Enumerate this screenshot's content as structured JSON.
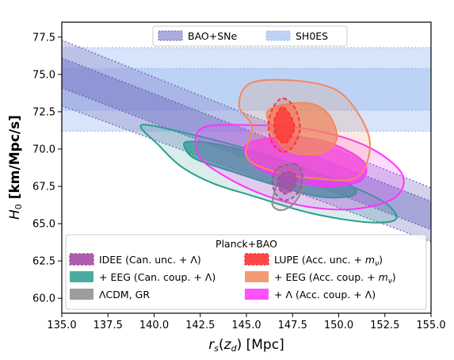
{
  "chart_data": {
    "type": "contour",
    "xlabel": "r_s(z_d)  [Mpc]",
    "ylabel": "H_0  [km/Mpc/s]",
    "xlim": [
      135.0,
      155.0
    ],
    "ylim": [
      59.0,
      78.5
    ],
    "xticks": [
      "135.0",
      "137.5",
      "140.0",
      "142.5",
      "145.0",
      "147.5",
      "150.0",
      "152.5",
      "155.0"
    ],
    "yticks": [
      "60.0",
      "62.5",
      "65.0",
      "67.5",
      "70.0",
      "72.5",
      "75.0",
      "77.5"
    ],
    "grid": false,
    "top_legend": {
      "placement": "top-center",
      "entries": [
        {
          "label": "BAO+SNe",
          "color": "#8e8ed0"
        },
        {
          "label": "SH0ES",
          "color": "#a8c4f2"
        }
      ]
    },
    "bottom_legend": {
      "placement": "lower-center",
      "title": "Planck+BAO",
      "entries": [
        {
          "label": "IDEE (Can. unc. + Λ)",
          "color": "#a64ca6"
        },
        {
          "label": "LUPE (Acc. unc. + m_ν)",
          "color": "#ff3333"
        },
        {
          "label": "+ EEG (Can. coup. + Λ)",
          "color": "#2a9d8f"
        },
        {
          "label": "+ EEG (Acc. coup. + m_ν)",
          "color": "#f08a5d"
        },
        {
          "label": "ΛCDM, GR",
          "color": "#8c8c8c"
        },
        {
          "label": "+ Λ (Acc. coup. + Λ)",
          "color": "#ff33ff"
        }
      ]
    },
    "bands": [
      {
        "name": "SH0ES",
        "type": "horizontal",
        "inner": [
          72.6,
          75.4
        ],
        "outer": [
          71.2,
          76.8
        ],
        "color": "#a8c4f2"
      },
      {
        "name": "BAO+SNe",
        "type": "diagonal",
        "inner_upper": [
          [
            135.0,
            76.1
          ],
          [
            155.0,
            66.5
          ]
        ],
        "inner_lower": [
          [
            135.0,
            74.1
          ],
          [
            155.0,
            64.6
          ]
        ],
        "outer_upper": [
          [
            135.0,
            77.3
          ],
          [
            155.0,
            67.4
          ]
        ],
        "outer_lower": [
          [
            135.0,
            72.9
          ],
          [
            155.0,
            63.8
          ]
        ],
        "color": "#8e8ed0"
      }
    ],
    "contours": [
      {
        "name": "+ EEG (Can. coup. + Λ)",
        "color": "#2a9d8f",
        "level": "outer",
        "points": [
          [
            139.3,
            71.6
          ],
          [
            141.6,
            71.1
          ],
          [
            144.5,
            70.2
          ],
          [
            147.5,
            69.0
          ],
          [
            150.5,
            67.6
          ],
          [
            152.5,
            66.4
          ],
          [
            153.1,
            65.3
          ],
          [
            151.5,
            65.1
          ],
          [
            148.5,
            65.7
          ],
          [
            145.5,
            66.8
          ],
          [
            143.2,
            67.7
          ],
          [
            141.5,
            68.8
          ],
          [
            140.3,
            70.2
          ]
        ]
      },
      {
        "name": "+ EEG (Can. coup. + Λ)",
        "color": "#2a9d8f",
        "level": "inner",
        "points": [
          [
            141.8,
            70.5
          ],
          [
            143.5,
            70.3
          ],
          [
            145.8,
            69.6
          ],
          [
            148.3,
            68.6
          ],
          [
            150.6,
            67.6
          ],
          [
            150.8,
            66.9
          ],
          [
            149.0,
            66.8
          ],
          [
            146.5,
            67.6
          ],
          [
            144.2,
            68.5
          ],
          [
            142.3,
            69.3
          ],
          [
            141.7,
            70.0
          ]
        ]
      },
      {
        "name": "+ Λ (Acc. coup. + Λ)",
        "color": "#ff33ff",
        "level": "outer",
        "points": [
          [
            142.6,
            71.4
          ],
          [
            145.5,
            71.6
          ],
          [
            148.5,
            71.3
          ],
          [
            151.5,
            70.2
          ],
          [
            153.4,
            68.4
          ],
          [
            153.1,
            66.8
          ],
          [
            151.0,
            66.0
          ],
          [
            148.5,
            66.1
          ],
          [
            146.0,
            66.9
          ],
          [
            143.8,
            68.2
          ],
          [
            142.4,
            69.6
          ]
        ]
      },
      {
        "name": "+ Λ (Acc. coup. + Λ)",
        "color": "#ff33ff",
        "level": "inner",
        "points": [
          [
            145.0,
            70.3
          ],
          [
            147.0,
            70.8
          ],
          [
            149.3,
            70.5
          ],
          [
            151.3,
            69.2
          ],
          [
            151.2,
            67.9
          ],
          [
            149.3,
            67.5
          ],
          [
            147.2,
            68.0
          ],
          [
            145.4,
            68.9
          ]
        ]
      },
      {
        "name": "+ EEG (Acc. coup. + m_ν)",
        "color": "#f08a5d",
        "level": "outer",
        "points": [
          [
            145.2,
            74.4
          ],
          [
            147.5,
            74.6
          ],
          [
            149.8,
            74.0
          ],
          [
            151.1,
            72.3
          ],
          [
            151.7,
            70.2
          ],
          [
            151.0,
            68.1
          ],
          [
            149.0,
            68.0
          ],
          [
            146.5,
            68.5
          ],
          [
            145.0,
            69.5
          ],
          [
            145.3,
            71.5
          ],
          [
            144.6,
            72.9
          ]
        ]
      },
      {
        "name": "+ EEG (Acc. coup. + m_ν)",
        "color": "#f08a5d",
        "level": "inner",
        "points": [
          [
            146.3,
            72.7
          ],
          [
            148.2,
            73.1
          ],
          [
            149.4,
            72.4
          ],
          [
            149.9,
            70.7
          ],
          [
            149.0,
            69.7
          ],
          [
            147.4,
            69.8
          ],
          [
            146.6,
            70.7
          ],
          [
            146.2,
            71.8
          ]
        ]
      },
      {
        "name": "LUPE (Acc. unc. + m_ν)",
        "color": "#ff3333",
        "level": "outer",
        "points": [
          [
            147.0,
            73.4
          ],
          [
            147.6,
            72.8
          ],
          [
            147.9,
            71.5
          ],
          [
            147.6,
            70.3
          ],
          [
            147.0,
            69.8
          ],
          [
            146.4,
            70.4
          ],
          [
            146.2,
            71.7
          ],
          [
            146.5,
            72.9
          ]
        ]
      },
      {
        "name": "LUPE (Acc. unc. + m_ν)",
        "color": "#ff3333",
        "level": "inner",
        "points": [
          [
            147.0,
            72.8
          ],
          [
            147.4,
            72.2
          ],
          [
            147.6,
            71.4
          ],
          [
            147.3,
            70.6
          ],
          [
            147.0,
            70.4
          ],
          [
            146.6,
            70.9
          ],
          [
            146.5,
            71.8
          ],
          [
            146.7,
            72.5
          ]
        ]
      },
      {
        "name": "ΛCDM, GR",
        "color": "#8c8c8c",
        "level": "outer",
        "points": [
          [
            147.2,
            69.0
          ],
          [
            147.9,
            68.6
          ],
          [
            148.1,
            67.6
          ],
          [
            147.6,
            66.4
          ],
          [
            146.9,
            65.9
          ],
          [
            146.4,
            66.3
          ],
          [
            146.6,
            67.5
          ],
          [
            146.8,
            68.5
          ]
        ]
      },
      {
        "name": "IDEE (Can. unc. + Λ)",
        "color": "#a64ca6",
        "level": "outer",
        "points": [
          [
            147.6,
            69.0
          ],
          [
            148.0,
            68.4
          ],
          [
            147.9,
            67.3
          ],
          [
            147.3,
            66.6
          ],
          [
            146.7,
            66.8
          ],
          [
            146.4,
            67.8
          ],
          [
            146.7,
            68.7
          ]
        ]
      },
      {
        "name": "IDEE (Can. unc. + Λ)",
        "color": "#a64ca6",
        "level": "inner",
        "points": [
          [
            147.5,
            68.4
          ],
          [
            147.7,
            67.9
          ],
          [
            147.5,
            67.3
          ],
          [
            147.1,
            67.0
          ],
          [
            146.8,
            67.3
          ],
          [
            146.7,
            67.9
          ],
          [
            147.0,
            68.4
          ]
        ]
      }
    ]
  }
}
